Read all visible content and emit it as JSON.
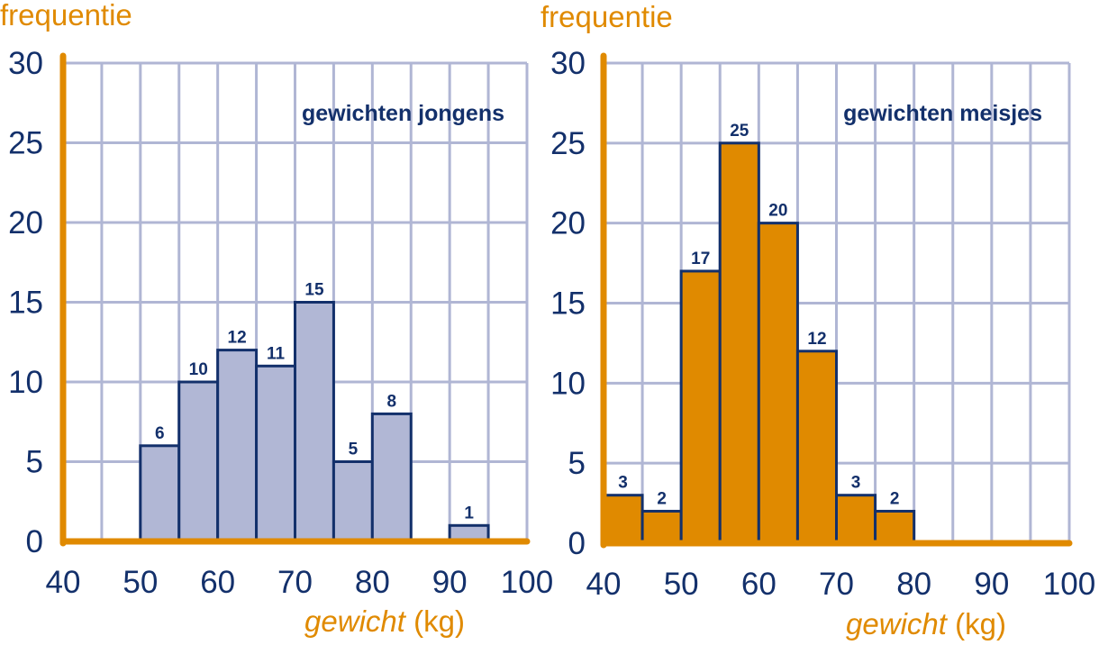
{
  "colors": {
    "axis": "#e08a00",
    "grid": "#b0b6d4",
    "text": "#13306b",
    "bar_outline": "#13306b",
    "boys_fill": "#b1b7d5",
    "girls_fill": "#e08a00"
  },
  "chart_data": [
    {
      "type": "bar",
      "title": "gewichten jongens",
      "ylabel": "frequentie",
      "xlabel_italic": "gewicht",
      "xlabel_unit": " (kg)",
      "xlim": [
        40,
        100
      ],
      "ylim": [
        0,
        30
      ],
      "xticks": [
        "40",
        "50",
        "60",
        "70",
        "80",
        "90",
        "100"
      ],
      "yticks": [
        "0",
        "5",
        "10",
        "15",
        "20",
        "25",
        "30"
      ],
      "grid": true,
      "bins": [
        {
          "start": 50,
          "end": 55,
          "value": 6
        },
        {
          "start": 55,
          "end": 60,
          "value": 10
        },
        {
          "start": 60,
          "end": 65,
          "value": 12
        },
        {
          "start": 65,
          "end": 70,
          "value": 11
        },
        {
          "start": 70,
          "end": 75,
          "value": 15
        },
        {
          "start": 75,
          "end": 80,
          "value": 5
        },
        {
          "start": 80,
          "end": 85,
          "value": 8
        },
        {
          "start": 90,
          "end": 95,
          "value": 1
        }
      ]
    },
    {
      "type": "bar",
      "title": "gewichten meisjes",
      "ylabel": "frequentie",
      "xlabel_italic": "gewicht",
      "xlabel_unit": " (kg)",
      "xlim": [
        40,
        100
      ],
      "ylim": [
        0,
        30
      ],
      "xticks": [
        "40",
        "50",
        "60",
        "70",
        "80",
        "90",
        "100"
      ],
      "yticks": [
        "0",
        "5",
        "10",
        "15",
        "20",
        "25",
        "30"
      ],
      "grid": true,
      "bins": [
        {
          "start": 40,
          "end": 45,
          "value": 3
        },
        {
          "start": 45,
          "end": 50,
          "value": 2
        },
        {
          "start": 50,
          "end": 55,
          "value": 17
        },
        {
          "start": 55,
          "end": 60,
          "value": 25
        },
        {
          "start": 60,
          "end": 65,
          "value": 20
        },
        {
          "start": 65,
          "end": 70,
          "value": 12
        },
        {
          "start": 70,
          "end": 75,
          "value": 3
        },
        {
          "start": 75,
          "end": 80,
          "value": 2
        }
      ]
    }
  ]
}
